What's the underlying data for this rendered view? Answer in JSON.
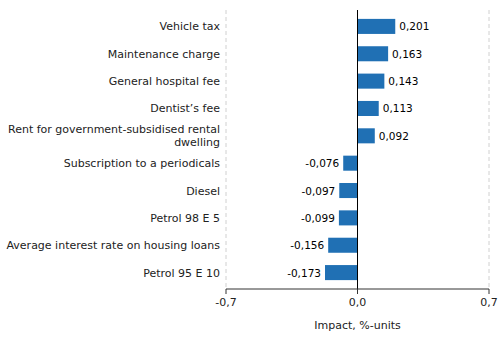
{
  "chart_data": {
    "type": "bar",
    "orientation": "horizontal",
    "categories": [
      "Petrol 95 E 10",
      "Average interest rate on housing loans",
      "Petrol 98 E 5",
      "Diesel",
      "Subscription to a periodicals",
      "Rent for government-subsidised rental\ndwelling",
      "Dentist’s fee",
      "General hospital fee",
      "Maintenance charge",
      "Vehicle tax"
    ],
    "values": [
      -0.173,
      -0.156,
      -0.099,
      -0.097,
      -0.076,
      0.092,
      0.113,
      0.143,
      0.163,
      0.201
    ],
    "value_labels": [
      "-0,173",
      "-0,156",
      "-0,099",
      "-0,097",
      "-0,076",
      "0,092",
      "0,113",
      "0,143",
      "0,163",
      "0,201"
    ],
    "data_labels": true,
    "color": "#2070b4",
    "xlabel": "Impact, %-units",
    "xlim": [
      -0.7,
      0.7
    ],
    "xticks": [
      {
        "value": -0.7,
        "label": "-0,7"
      },
      {
        "value": 0.0,
        "label": "0,0"
      },
      {
        "value": 0.7,
        "label": "0,7"
      }
    ],
    "grid": true
  }
}
